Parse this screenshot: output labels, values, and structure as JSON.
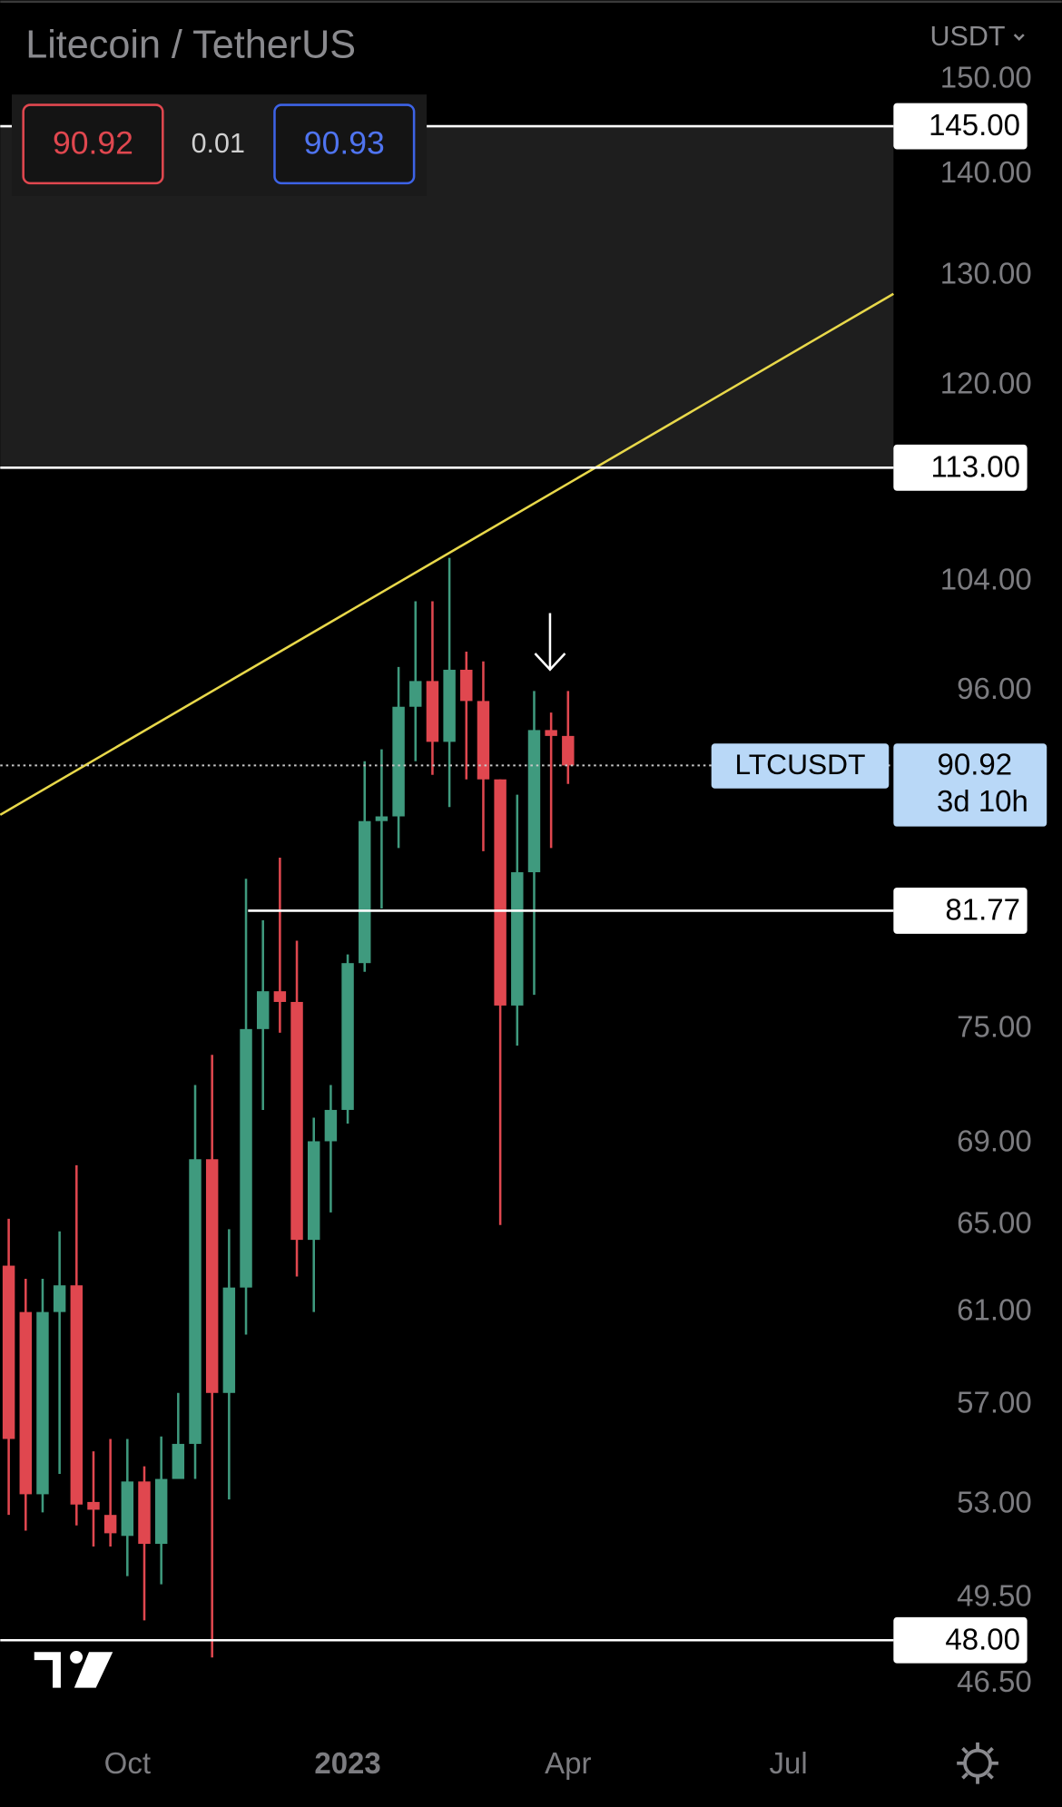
{
  "chart_data": {
    "type": "candlestick",
    "title": "Litecoin / TetherUS",
    "currency": "USDT",
    "header": {
      "bid": 90.92,
      "spread": 0.01,
      "ask": 90.93
    },
    "up_color": "#3f9a7e",
    "down_color": "#e0474f",
    "log_scale": true,
    "ylim": [
      45,
      159
    ],
    "yticks": [
      {
        "value": 150,
        "label": "150.00"
      },
      {
        "value": 140,
        "label": "140.00"
      },
      {
        "value": 130,
        "label": "130.00"
      },
      {
        "value": 120,
        "label": "120.00"
      },
      {
        "value": 104,
        "label": "104.00"
      },
      {
        "value": 96,
        "label": "96.00"
      },
      {
        "value": 75,
        "label": "75.00"
      },
      {
        "value": 69,
        "label": "69.00"
      },
      {
        "value": 65,
        "label": "65.00"
      },
      {
        "value": 61,
        "label": "61.00"
      },
      {
        "value": 57,
        "label": "57.00"
      },
      {
        "value": 53,
        "label": "53.00"
      },
      {
        "value": 49.5,
        "label": "49.50"
      },
      {
        "value": 46.5,
        "label": "46.50"
      }
    ],
    "xlim": [
      -0.5,
      52.2
    ],
    "xticks": [
      {
        "value": 7,
        "label": "Oct"
      },
      {
        "value": 20,
        "label": "2023"
      },
      {
        "value": 33,
        "label": "Apr"
      },
      {
        "value": 46,
        "label": "Jul"
      }
    ],
    "open": [
      63.1,
      61,
      53.4,
      61,
      62.2,
      53.1,
      52.6,
      51.8,
      53.9,
      51.5,
      54,
      55.4,
      68.2,
      57.5,
      62.1,
      75,
      77.1,
      76.5,
      64.3,
      69.1,
      70.7,
      78.7,
      87.3,
      87.6,
      94.9,
      96.7,
      92.5,
      97.5,
      95.3,
      90,
      76.3,
      84.1,
      93.3,
      92.9
    ],
    "high": [
      65.3,
      62.5,
      62.5,
      64.7,
      67.9,
      55.1,
      55.6,
      55.6,
      54.5,
      55.7,
      57.5,
      72,
      73.6,
      64.8,
      83.7,
      81.2,
      85,
      80,
      70.3,
      72,
      79.2,
      91.2,
      92,
      97.7,
      102.5,
      102.5,
      105.8,
      98.8,
      98.1,
      90,
      89,
      96,
      94.5,
      96
    ],
    "low": [
      52.6,
      52,
      52.7,
      54.2,
      52.2,
      51.4,
      51.4,
      50.3,
      48.7,
      50,
      54.3,
      54,
      47.4,
      53.2,
      60,
      70.7,
      74.8,
      62.6,
      61,
      65.6,
      70,
      78.2,
      81.9,
      85.6,
      91.2,
      90.3,
      88.2,
      90,
      85.4,
      65,
      74.1,
      76.9,
      85.6,
      89.7
    ],
    "close": [
      55.6,
      53.4,
      61,
      62.2,
      53,
      52.8,
      51.9,
      53.9,
      51.5,
      54,
      55.4,
      68.2,
      57.5,
      62.1,
      75,
      77.1,
      76.5,
      64.3,
      69.1,
      70.7,
      78.7,
      87.3,
      87.6,
      94.9,
      96.7,
      92.5,
      97.5,
      95.3,
      90,
      76.3,
      84.1,
      93.3,
      92.9,
      90.92
    ],
    "levels": [
      {
        "value": 145,
        "label": "145.00"
      },
      {
        "value": 113,
        "label": "113.00"
      },
      {
        "value": 81.77,
        "label": "81.77"
      },
      {
        "value": 48,
        "label": "48.00"
      }
    ],
    "zone_color": "#1e1e1e",
    "trendline": {
      "color": "#e8d84a",
      "x": [
        -0.5,
        52.2
      ],
      "y": [
        87.7,
        128.3
      ]
    },
    "last_price": {
      "symbol": "LTCUSDT",
      "value": 90.92,
      "countdown": "3d 10h"
    }
  }
}
